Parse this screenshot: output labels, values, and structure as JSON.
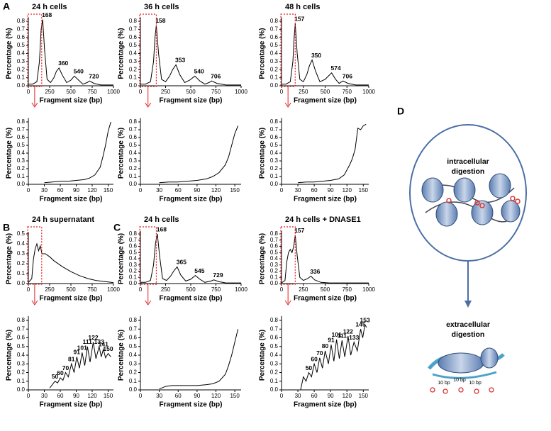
{
  "panels": {
    "A": "A",
    "B": "B",
    "C": "C",
    "D": "D"
  },
  "diagram": {
    "top_label": [
      "intracellular",
      "digestion"
    ],
    "bottom_label": [
      "extracellular",
      "digestion"
    ],
    "spacings": [
      "10 bp",
      "10 bp",
      "10 bp"
    ]
  },
  "chart_data": [
    {
      "type": "line",
      "title": "24 h cells",
      "x_label": "Fragment size (bp)",
      "y_label": "Percentage (%)",
      "color": "#000000",
      "x": [
        0,
        50,
        100,
        130,
        150,
        168,
        190,
        220,
        260,
        300,
        330,
        360,
        400,
        450,
        500,
        540,
        590,
        640,
        690,
        720,
        770,
        850,
        1000
      ],
      "values": [
        0.02,
        0.02,
        0.05,
        0.3,
        0.7,
        0.82,
        0.45,
        0.08,
        0.04,
        0.1,
        0.18,
        0.22,
        0.13,
        0.04,
        0.07,
        0.12,
        0.07,
        0.02,
        0.04,
        0.06,
        0.03,
        0.01,
        0.01
      ],
      "xlim": [
        0,
        1000
      ],
      "ylim": [
        0,
        0.85
      ],
      "xticks": [
        0,
        250,
        500,
        750,
        1000
      ],
      "yticks": [
        {
          "value": 0,
          "label": "0.0"
        },
        0.1,
        0.2,
        0.3,
        0.4,
        0.5,
        0.6,
        0.7,
        0.8
      ],
      "annotations": [
        {
          "text": "168",
          "x": 168,
          "y": 0.82
        },
        {
          "text": "360",
          "x": 360,
          "y": 0.22
        },
        {
          "text": "540",
          "x": 540,
          "y": 0.12
        },
        {
          "text": "720",
          "x": 720,
          "y": 0.06
        }
      ]
    },
    {
      "type": "line",
      "title": "36 h cells",
      "x_label": "Fragment size (bp)",
      "y_label": "Percentage (%)",
      "color": "#000000",
      "x": [
        0,
        50,
        100,
        130,
        145,
        158,
        180,
        210,
        250,
        290,
        320,
        353,
        390,
        440,
        490,
        540,
        590,
        640,
        680,
        706,
        760,
        850,
        1000
      ],
      "values": [
        0.02,
        0.02,
        0.05,
        0.3,
        0.6,
        0.75,
        0.4,
        0.08,
        0.05,
        0.12,
        0.2,
        0.26,
        0.14,
        0.04,
        0.07,
        0.12,
        0.06,
        0.02,
        0.04,
        0.06,
        0.03,
        0.01,
        0.01
      ],
      "xlim": [
        0,
        1000
      ],
      "ylim": [
        0,
        0.85
      ],
      "xticks": [
        0,
        250,
        500,
        750,
        1000
      ],
      "yticks": [
        {
          "value": 0,
          "label": "0.0"
        },
        0.1,
        0.2,
        0.3,
        0.4,
        0.5,
        0.6,
        0.7,
        0.8
      ],
      "annotations": [
        {
          "text": "158",
          "x": 158,
          "y": 0.75
        },
        {
          "text": "353",
          "x": 353,
          "y": 0.26
        },
        {
          "text": "540",
          "x": 540,
          "y": 0.12
        },
        {
          "text": "706",
          "x": 706,
          "y": 0.06
        }
      ]
    },
    {
      "type": "line",
      "title": "48 h cells",
      "x_label": "Fragment size (bp)",
      "y_label": "Percentage (%)",
      "color": "#000000",
      "x": [
        0,
        50,
        100,
        130,
        145,
        157,
        180,
        210,
        250,
        290,
        320,
        350,
        390,
        440,
        500,
        574,
        620,
        660,
        690,
        706,
        760,
        850,
        1000
      ],
      "values": [
        0.02,
        0.02,
        0.05,
        0.3,
        0.6,
        0.77,
        0.4,
        0.08,
        0.05,
        0.14,
        0.25,
        0.32,
        0.18,
        0.05,
        0.08,
        0.16,
        0.08,
        0.03,
        0.05,
        0.06,
        0.03,
        0.01,
        0.01
      ],
      "xlim": [
        0,
        1000
      ],
      "ylim": [
        0,
        0.85
      ],
      "xticks": [
        0,
        250,
        500,
        750,
        1000
      ],
      "yticks": [
        {
          "value": 0,
          "label": "0.0"
        },
        0.1,
        0.2,
        0.3,
        0.4,
        0.5,
        0.6,
        0.7,
        0.8
      ],
      "annotations": [
        {
          "text": "157",
          "x": 157,
          "y": 0.77
        },
        {
          "text": "350",
          "x": 350,
          "y": 0.32
        },
        {
          "text": "574",
          "x": 574,
          "y": 0.16
        },
        {
          "text": "706",
          "x": 706,
          "y": 0.06
        }
      ]
    },
    {
      "type": "line",
      "x_label": "Fragment size (bp)",
      "y_label": "Percentage (%)",
      "color": "#000000",
      "x": [
        30,
        45,
        60,
        75,
        90,
        105,
        115,
        125,
        135,
        140,
        145,
        150,
        155
      ],
      "values": [
        0.02,
        0.03,
        0.04,
        0.04,
        0.05,
        0.06,
        0.08,
        0.12,
        0.22,
        0.35,
        0.5,
        0.68,
        0.8
      ],
      "xlim": [
        0,
        160
      ],
      "ylim": [
        0,
        0.85
      ],
      "xticks": [
        0,
        30,
        60,
        90,
        120,
        150
      ],
      "yticks": [
        {
          "value": 0,
          "label": "0.0"
        },
        0.1,
        0.2,
        0.3,
        0.4,
        0.5,
        0.6,
        0.7,
        0.8
      ]
    },
    {
      "type": "line",
      "x_label": "Fragment size (bp)",
      "y_label": "Percentage (%)",
      "color": "#000000",
      "x": [
        30,
        45,
        60,
        75,
        90,
        105,
        115,
        125,
        135,
        140,
        145,
        150,
        155
      ],
      "values": [
        0.02,
        0.03,
        0.03,
        0.04,
        0.05,
        0.07,
        0.1,
        0.15,
        0.25,
        0.35,
        0.5,
        0.65,
        0.75
      ],
      "xlim": [
        0,
        160
      ],
      "ylim": [
        0,
        0.85
      ],
      "xticks": [
        0,
        30,
        60,
        90,
        120,
        150
      ],
      "yticks": [
        {
          "value": 0,
          "label": "0.0"
        },
        0.1,
        0.2,
        0.3,
        0.4,
        0.5,
        0.6,
        0.7,
        0.8
      ]
    },
    {
      "type": "line",
      "x_label": "Fragment size (bp)",
      "y_label": "Percentage (%)",
      "color": "#000000",
      "x": [
        30,
        45,
        60,
        75,
        90,
        105,
        115,
        125,
        130,
        135,
        140,
        145,
        150,
        155
      ],
      "values": [
        0.02,
        0.03,
        0.03,
        0.04,
        0.05,
        0.07,
        0.12,
        0.25,
        0.33,
        0.45,
        0.72,
        0.7,
        0.75,
        0.77
      ],
      "xlim": [
        0,
        160
      ],
      "ylim": [
        0,
        0.85
      ],
      "xticks": [
        0,
        30,
        60,
        90,
        120,
        150
      ],
      "yticks": [
        {
          "value": 0,
          "label": "0.0"
        },
        0.1,
        0.2,
        0.3,
        0.4,
        0.5,
        0.6,
        0.7,
        0.8
      ]
    },
    {
      "type": "line",
      "title": "24 h supernatant",
      "x_label": "Fragment size (bp)",
      "y_label": "Percentage (%)",
      "color": "#000000",
      "x": [
        0,
        40,
        60,
        80,
        100,
        120,
        140,
        160,
        200,
        250,
        300,
        400,
        500,
        600,
        700,
        800,
        900,
        1000
      ],
      "values": [
        0.01,
        0.05,
        0.25,
        0.35,
        0.4,
        0.33,
        0.38,
        0.3,
        0.3,
        0.27,
        0.23,
        0.17,
        0.12,
        0.08,
        0.05,
        0.03,
        0.02,
        0.01
      ],
      "xlim": [
        0,
        1000
      ],
      "ylim": [
        0,
        0.52
      ],
      "xticks": [
        0,
        250,
        500,
        750,
        1000
      ],
      "yticks": [
        {
          "value": 0,
          "label": "0.0"
        },
        0.1,
        0.2,
        0.3,
        0.4,
        0.5
      ]
    },
    {
      "type": "line",
      "title": "24 h cells",
      "x_label": "Fragment size (bp)",
      "y_label": "Percentage (%)",
      "color": "#000000",
      "x": [
        0,
        50,
        100,
        130,
        150,
        168,
        190,
        220,
        260,
        300,
        330,
        365,
        400,
        450,
        500,
        545,
        590,
        640,
        700,
        729,
        780,
        850,
        1000
      ],
      "values": [
        0.02,
        0.02,
        0.05,
        0.3,
        0.65,
        0.8,
        0.45,
        0.08,
        0.05,
        0.12,
        0.2,
        0.27,
        0.14,
        0.04,
        0.07,
        0.13,
        0.07,
        0.02,
        0.04,
        0.06,
        0.03,
        0.01,
        0.01
      ],
      "xlim": [
        0,
        1000
      ],
      "ylim": [
        0,
        0.85
      ],
      "xticks": [
        0,
        250,
        500,
        750,
        1000
      ],
      "yticks": [
        {
          "value": 0,
          "label": "0.0"
        },
        0.1,
        0.2,
        0.3,
        0.4,
        0.5,
        0.6,
        0.7,
        0.8
      ],
      "annotations": [
        {
          "text": "168",
          "x": 168,
          "y": 0.8
        },
        {
          "text": "365",
          "x": 365,
          "y": 0.27
        },
        {
          "text": "545",
          "x": 545,
          "y": 0.13
        },
        {
          "text": "729",
          "x": 729,
          "y": 0.06
        }
      ]
    },
    {
      "type": "line",
      "title": "24 h cells + DNASE1",
      "x_label": "Fragment size (bp)",
      "y_label": "Percentage (%)",
      "color": "#000000",
      "x": [
        0,
        40,
        60,
        80,
        100,
        120,
        140,
        157,
        180,
        210,
        250,
        300,
        336,
        380,
        450,
        550,
        700,
        850,
        1000
      ],
      "values": [
        0.01,
        0.05,
        0.35,
        0.5,
        0.55,
        0.5,
        0.6,
        0.78,
        0.45,
        0.1,
        0.05,
        0.08,
        0.12,
        0.06,
        0.02,
        0.01,
        0.01,
        0.01,
        0.01
      ],
      "xlim": [
        0,
        1000
      ],
      "ylim": [
        0,
        0.85
      ],
      "xticks": [
        0,
        250,
        500,
        750,
        1000
      ],
      "yticks": [
        {
          "value": 0,
          "label": "0.0"
        },
        0.1,
        0.2,
        0.3,
        0.4,
        0.5,
        0.6,
        0.7,
        0.8
      ],
      "annotations": [
        {
          "text": "157",
          "x": 157,
          "y": 0.78
        },
        {
          "text": "336",
          "x": 336,
          "y": 0.12
        }
      ]
    },
    {
      "type": "line",
      "x_label": "Fragment size (bp)",
      "y_label": "Percentage (%)",
      "color": "#000000",
      "x": [
        40,
        45,
        50,
        55,
        60,
        65,
        70,
        75,
        81,
        86,
        91,
        96,
        101,
        106,
        111,
        116,
        122,
        127,
        133,
        137,
        141,
        145,
        150,
        155
      ],
      "values": [
        0.02,
        0.06,
        0.1,
        0.08,
        0.14,
        0.11,
        0.2,
        0.15,
        0.3,
        0.2,
        0.38,
        0.25,
        0.43,
        0.28,
        0.5,
        0.32,
        0.55,
        0.36,
        0.5,
        0.38,
        0.47,
        0.37,
        0.42,
        0.38
      ],
      "xlim": [
        0,
        160
      ],
      "ylim": [
        0,
        0.85
      ],
      "xticks": [
        0,
        30,
        60,
        90,
        120,
        150
      ],
      "yticks": [
        {
          "value": 0,
          "label": "0.0"
        },
        0.1,
        0.2,
        0.3,
        0.4,
        0.5,
        0.6,
        0.7,
        0.8
      ],
      "annotations": [
        {
          "text": "50",
          "x": 50,
          "y": 0.1
        },
        {
          "text": "60",
          "x": 60,
          "y": 0.14
        },
        {
          "text": "70",
          "x": 70,
          "y": 0.2
        },
        {
          "text": "81",
          "x": 81,
          "y": 0.3
        },
        {
          "text": "91",
          "x": 91,
          "y": 0.38
        },
        {
          "text": "101",
          "x": 101,
          "y": 0.43
        },
        {
          "text": "111",
          "x": 111,
          "y": 0.5
        },
        {
          "text": "122",
          "x": 122,
          "y": 0.55
        },
        {
          "text": "133",
          "x": 133,
          "y": 0.5
        },
        {
          "text": "141",
          "x": 141,
          "y": 0.47
        },
        {
          "text": "150",
          "x": 150,
          "y": 0.42
        }
      ]
    },
    {
      "type": "line",
      "x_label": "Fragment size (bp)",
      "y_label": "Percentage (%)",
      "color": "#000000",
      "x": [
        30,
        40,
        50,
        60,
        75,
        90,
        105,
        115,
        125,
        135,
        140,
        145,
        150,
        155
      ],
      "values": [
        0.01,
        0.04,
        0.05,
        0.05,
        0.05,
        0.05,
        0.06,
        0.07,
        0.1,
        0.18,
        0.28,
        0.4,
        0.55,
        0.7
      ],
      "xlim": [
        0,
        160
      ],
      "ylim": [
        0,
        0.85
      ],
      "xticks": [
        0,
        30,
        60,
        90,
        120,
        150
      ],
      "yticks": [
        {
          "value": 0,
          "label": "0.0"
        },
        0.1,
        0.2,
        0.3,
        0.4,
        0.5,
        0.6,
        0.7,
        0.8
      ]
    },
    {
      "type": "line",
      "x_label": "Fragment size (bp)",
      "y_label": "Percentage (%)",
      "color": "#000000",
      "x": [
        35,
        40,
        45,
        50,
        55,
        60,
        65,
        70,
        75,
        80,
        86,
        91,
        96,
        101,
        106,
        111,
        116,
        122,
        127,
        133,
        139,
        145,
        149,
        153,
        156
      ],
      "values": [
        0.0,
        0.15,
        0.1,
        0.2,
        0.15,
        0.3,
        0.2,
        0.37,
        0.25,
        0.45,
        0.3,
        0.52,
        0.33,
        0.58,
        0.36,
        0.57,
        0.38,
        0.62,
        0.4,
        0.55,
        0.45,
        0.7,
        0.6,
        0.75,
        0.72
      ],
      "xlim": [
        0,
        160
      ],
      "ylim": [
        0,
        0.85
      ],
      "xticks": [
        0,
        30,
        60,
        90,
        120,
        150
      ],
      "yticks": [
        {
          "value": 0,
          "label": "0.0"
        },
        0.1,
        0.2,
        0.3,
        0.4,
        0.5,
        0.6,
        0.7,
        0.8
      ],
      "annotations": [
        {
          "text": "50",
          "x": 50,
          "y": 0.2
        },
        {
          "text": "60",
          "x": 60,
          "y": 0.3
        },
        {
          "text": "70",
          "x": 70,
          "y": 0.37
        },
        {
          "text": "80",
          "x": 80,
          "y": 0.45
        },
        {
          "text": "91",
          "x": 91,
          "y": 0.52
        },
        {
          "text": "101",
          "x": 101,
          "y": 0.58
        },
        {
          "text": "111",
          "x": 111,
          "y": 0.57
        },
        {
          "text": "122",
          "x": 122,
          "y": 0.62
        },
        {
          "text": "133",
          "x": 133,
          "y": 0.55
        },
        {
          "text": "145",
          "x": 145,
          "y": 0.7
        },
        {
          "text": "153",
          "x": 153,
          "y": 0.75
        }
      ]
    }
  ]
}
